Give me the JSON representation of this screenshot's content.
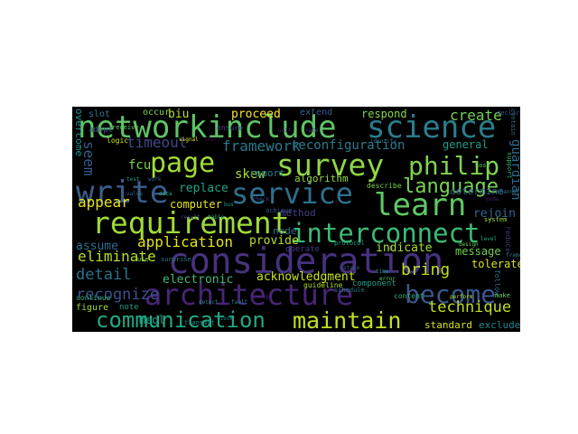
{
  "word_cloud": {
    "words": [
      {
        "text": "networkinclude",
        "color": "#5fc466"
      },
      {
        "text": "science",
        "color": "#2a7d8d"
      },
      {
        "text": "survey",
        "color": "#8fd645"
      },
      {
        "text": "page",
        "color": "#a2db37"
      },
      {
        "text": "philip",
        "color": "#7ed34f"
      },
      {
        "text": "write",
        "color": "#3a5e8c"
      },
      {
        "text": "service",
        "color": "#2d6f8e"
      },
      {
        "text": "learn",
        "color": "#5ec962"
      },
      {
        "text": "requirement",
        "color": "#a0da39"
      },
      {
        "text": "interconnect",
        "color": "#3bbb75"
      },
      {
        "text": "consideration",
        "color": "#46327e"
      },
      {
        "text": "architecture",
        "color": "#482576"
      },
      {
        "text": "become",
        "color": "#38588c"
      },
      {
        "text": "communication",
        "color": "#22a884"
      },
      {
        "text": "maintain",
        "color": "#c2df23"
      },
      {
        "text": "language",
        "color": "#7ad151"
      },
      {
        "text": "create",
        "color": "#73d056"
      },
      {
        "text": "framework",
        "color": "#2a788e"
      },
      {
        "text": "reconfiguration",
        "color": "#287c8e"
      },
      {
        "text": "timeout",
        "color": "#3f4788"
      },
      {
        "text": "application",
        "color": "#e3e418"
      },
      {
        "text": "appear",
        "color": "#e7e419"
      },
      {
        "text": "eliminate",
        "color": "#b5de2b"
      },
      {
        "text": "detail",
        "color": "#2c718e"
      },
      {
        "text": "recognize",
        "color": "#3b528b"
      },
      {
        "text": "electronic",
        "color": "#3bbb75"
      },
      {
        "text": "bring",
        "color": "#bddf26"
      },
      {
        "text": "technique",
        "color": "#bddf26"
      },
      {
        "text": "proceed",
        "color": "#fde725"
      },
      {
        "text": "respond",
        "color": "#86d549"
      },
      {
        "text": "biu",
        "color": "#b8de29"
      },
      {
        "text": "skew",
        "color": "#aadc32"
      },
      {
        "text": "fcu",
        "color": "#7ad151"
      },
      {
        "text": "replace",
        "color": "#20a386"
      },
      {
        "text": "computer",
        "color": "#e5e419"
      },
      {
        "text": "assume",
        "color": "#2e6e8e"
      },
      {
        "text": "provide",
        "color": "#b8de29"
      },
      {
        "text": "indicate",
        "color": "#a8db34"
      },
      {
        "text": "message",
        "color": "#6ece58"
      },
      {
        "text": "tolerate",
        "color": "#d8e219"
      },
      {
        "text": "acknowledgment",
        "color": "#cae11f"
      },
      {
        "text": "standard",
        "color": "#d2e21b"
      },
      {
        "text": "exclude",
        "color": "#25848e"
      },
      {
        "text": "rejoin",
        "color": "#31668e"
      },
      {
        "text": "determine",
        "color": "#33628d"
      },
      {
        "text": "general",
        "color": "#1e9c89"
      },
      {
        "text": "guardian",
        "color": "#306a8e"
      },
      {
        "text": "seem",
        "color": "#365c8d"
      },
      {
        "text": "overcome",
        "color": "#1f958b"
      },
      {
        "text": "medl",
        "color": "#1fa088"
      },
      {
        "text": "node",
        "color": "#2e6f8e"
      },
      {
        "text": "algorithm",
        "color": "#95d840"
      },
      {
        "text": "report",
        "color": "#26828e"
      },
      {
        "text": "method",
        "color": "#433e85"
      },
      {
        "text": "extend",
        "color": "#365d8d"
      },
      {
        "text": "occur",
        "color": "#7fd34e"
      },
      {
        "text": "slot",
        "color": "#2a768e"
      },
      {
        "text": "adopt",
        "color": "#3d4e8a"
      },
      {
        "text": "logic",
        "color": "#cde11d"
      },
      {
        "text": "figure",
        "color": "#a5db36"
      },
      {
        "text": "note",
        "color": "#1f9f88"
      },
      {
        "text": "continue",
        "color": "#29af7f"
      },
      {
        "text": "component",
        "color": "#1fa187"
      },
      {
        "text": "content",
        "color": "#2db27d"
      },
      {
        "text": "guideline",
        "color": "#b2dd2d"
      },
      {
        "text": "describe",
        "color": "#7ad151"
      },
      {
        "text": "system",
        "color": "#a0da39"
      },
      {
        "text": "surprise",
        "color": "#2a788e"
      },
      {
        "text": "achieve",
        "color": "#38588c"
      },
      {
        "text": "receive",
        "color": "#65cb5e"
      },
      {
        "text": "ensure",
        "color": "#3e4989"
      },
      {
        "text": "operate",
        "color": "#443b84"
      },
      {
        "text": "follow",
        "color": "#2c728e"
      },
      {
        "text": "perform",
        "color": "#b5de2b"
      },
      {
        "text": "reduce",
        "color": "#453781"
      },
      {
        "text": "contain",
        "color": "#2f6b8e"
      },
      {
        "text": "declare",
        "color": "#3c4f8a"
      },
      {
        "text": "make",
        "color": "#6ece58"
      },
      {
        "text": "schedule",
        "color": "#2a788e"
      },
      {
        "text": "transmit",
        "color": "#21918c"
      },
      {
        "text": "occupy",
        "color": "#482475"
      },
      {
        "text": "support",
        "color": "#35b779"
      },
      {
        "text": "identify",
        "color": "#2c728e"
      },
      {
        "text": "use",
        "color": "#90d743"
      },
      {
        "text": "detect",
        "color": "#26828e"
      },
      {
        "text": "fault",
        "color": "#24878e"
      },
      {
        "text": "protocol",
        "color": "#21a585"
      },
      {
        "text": "host",
        "color": "#5ec962"
      },
      {
        "text": "value",
        "color": "#31688e"
      },
      {
        "text": "data",
        "color": "#27ad81"
      },
      {
        "text": "result",
        "color": "#3e4c8a"
      },
      {
        "text": "table",
        "color": "#22a884"
      },
      {
        "text": "bus",
        "color": "#1f9e89"
      },
      {
        "text": "check",
        "color": "#414487"
      },
      {
        "text": "design",
        "color": "#6ccd5a"
      },
      {
        "text": "level",
        "color": "#25ab82"
      },
      {
        "text": "frame",
        "color": "#277f8e"
      },
      {
        "text": "state",
        "color": "#3a548c"
      },
      {
        "text": "time",
        "color": "#20928c"
      },
      {
        "text": "error",
        "color": "#5cc863"
      },
      {
        "text": "clock",
        "color": "#1f968b"
      },
      {
        "text": "mode",
        "color": "#48186a"
      },
      {
        "text": "channel",
        "color": "#2d708e"
      },
      {
        "text": "signal",
        "color": "#dde318"
      },
      {
        "text": "start",
        "color": "#440154"
      },
      {
        "text": "unit",
        "color": "#482173"
      },
      {
        "text": "rate",
        "color": "#46337f"
      },
      {
        "text": "test",
        "color": "#1fa088"
      },
      {
        "text": "work",
        "color": "#34618d"
      }
    ]
  }
}
